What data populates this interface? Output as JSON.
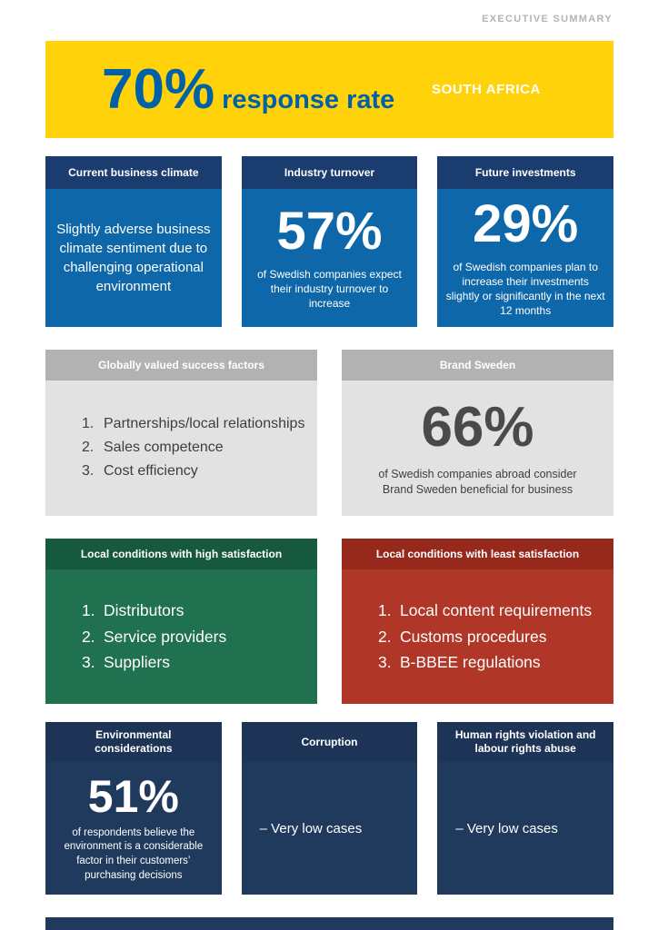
{
  "header": {
    "eyebrow": "EXECUTIVE SUMMARY"
  },
  "banner": {
    "percent": "70%",
    "label": "response rate",
    "region": "SOUTH AFRICA"
  },
  "cards": {
    "business_climate": {
      "title": "Current business climate",
      "body": "Slightly adverse business climate sentiment due to challenging operational environment"
    },
    "industry_turnover": {
      "title": "Industry turnover",
      "percent": "57%",
      "caption": "of Swedish companies expect their industry turnover to increase"
    },
    "future_investments": {
      "title": "Future investments",
      "percent": "29%",
      "caption": "of Swedish companies plan to increase their investments slightly or significantly in the next 12 months"
    },
    "success_factors": {
      "title": "Globally valued success factors",
      "items": [
        "Partnerships/local relationships",
        "Sales competence",
        "Cost efficiency"
      ]
    },
    "brand_sweden": {
      "title": "Brand Sweden",
      "percent": "66%",
      "caption": "of Swedish companies abroad consider Brand Sweden beneficial for business"
    },
    "high_satisfaction": {
      "title": "Local conditions with high satisfaction",
      "items": [
        "Distributors",
        "Service providers",
        "Suppliers"
      ]
    },
    "least_satisfaction": {
      "title": "Local conditions with least satisfaction",
      "items": [
        "Local content requirements",
        "Customs procedures",
        "B-BBEE regulations"
      ]
    },
    "environment": {
      "title": "Environmental considerations",
      "percent": "51%",
      "caption": "of respondents believe the environment is a considerable factor in their customers’ purchasing decisions"
    },
    "corruption": {
      "title": "Corruption",
      "body": "– Very low cases"
    },
    "human_rights": {
      "title": "Human rights violation and labour rights abuse",
      "body": "– Very low cases"
    }
  },
  "colors": {
    "banner_yellow": "#ffd20a",
    "brand_blue_text": "#0061a8",
    "blue_header": "#1a3c6e",
    "blue_body": "#0e67a8",
    "gray_header": "#b2b2b2",
    "gray_body": "#e2e2e2",
    "green_header": "#17593f",
    "green_body": "#1f7150",
    "red_header": "#96291c",
    "red_body": "#b03628",
    "navy_header": "#1d3457",
    "navy_body": "#203a5e"
  }
}
